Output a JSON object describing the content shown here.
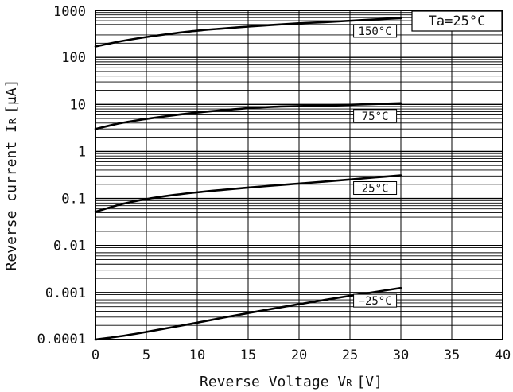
{
  "chart_data": {
    "type": "line",
    "xlabel": "Reverse Voltage V",
    "xlabel_sub": "R",
    "xlabel_unit": "[V]",
    "ylabel": "Reverse current I",
    "ylabel_sub": "R",
    "ylabel_unit": "[μA]",
    "annotation": "Ta=25°C",
    "xlim": [
      0,
      40
    ],
    "ylim": [
      0.0001,
      1000
    ],
    "yscale": "log",
    "grid": true,
    "x_ticks": [
      "0",
      "5",
      "10",
      "15",
      "20",
      "25",
      "30",
      "35",
      "40"
    ],
    "y_ticks": [
      "0.0001",
      "0.001",
      "0.01",
      "0.1",
      "1",
      "10",
      "100",
      "1000"
    ],
    "series": [
      {
        "name": "150°C",
        "x": [
          0,
          2.5,
          5,
          7.5,
          10,
          12.5,
          15,
          17.5,
          20,
          22.5,
          25,
          27.5,
          30
        ],
        "y": [
          170,
          220,
          270,
          320,
          370,
          410,
          450,
          490,
          530,
          560,
          600,
          640,
          680
        ]
      },
      {
        "name": "75°C",
        "x": [
          0,
          2.5,
          5,
          7.5,
          10,
          12.5,
          15,
          17.5,
          20,
          22.5,
          25,
          27.5,
          30
        ],
        "y": [
          3.0,
          4.0,
          4.9,
          5.8,
          6.7,
          7.5,
          8.3,
          8.9,
          9.2,
          9.5,
          9.8,
          10.2,
          10.6
        ]
      },
      {
        "name": "25°C",
        "x": [
          0,
          2.5,
          5,
          7.5,
          10,
          12.5,
          15,
          17.5,
          20,
          22.5,
          25,
          27.5,
          30
        ],
        "y": [
          0.052,
          0.075,
          0.097,
          0.117,
          0.135,
          0.152,
          0.17,
          0.188,
          0.207,
          0.228,
          0.252,
          0.28,
          0.31
        ]
      },
      {
        "name": "−25°C",
        "x": [
          0,
          2.5,
          5,
          7.5,
          10,
          12.5,
          15,
          17.5,
          20,
          22.5,
          25,
          27.5,
          30
        ],
        "y": [
          0.0001,
          0.000118,
          0.000145,
          0.000182,
          0.000228,
          0.00029,
          0.000365,
          0.000455,
          0.000565,
          0.000695,
          0.00085,
          0.00103,
          0.00125
        ]
      }
    ]
  }
}
